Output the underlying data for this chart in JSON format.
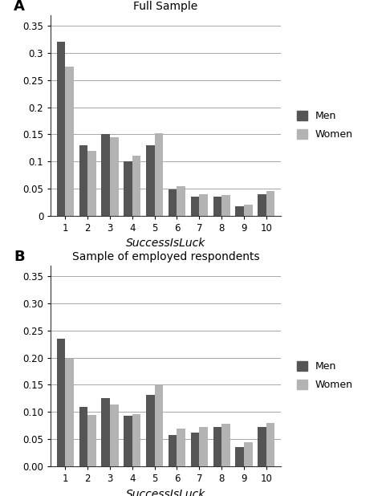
{
  "panel_A": {
    "title": "Full Sample",
    "label": "A",
    "men": [
      0.32,
      0.13,
      0.15,
      0.1,
      0.13,
      0.048,
      0.035,
      0.035,
      0.017,
      0.039
    ],
    "women": [
      0.275,
      0.12,
      0.145,
      0.11,
      0.152,
      0.055,
      0.04,
      0.038,
      0.02,
      0.046
    ],
    "ylim": [
      0,
      0.37
    ],
    "yticks": [
      0,
      0.05,
      0.1,
      0.15,
      0.2,
      0.25,
      0.3,
      0.35
    ],
    "yticklabels": [
      "0",
      "0.05",
      "0.1",
      "0.15",
      "0.2",
      "0.25",
      "0.3",
      "0.35"
    ],
    "xlabel": "SuccessIsLuck"
  },
  "panel_B": {
    "title": "Sample of employed respondents",
    "label": "B",
    "men": [
      0.235,
      0.11,
      0.125,
      0.093,
      0.132,
      0.058,
      0.062,
      0.072,
      0.036,
      0.073
    ],
    "women": [
      0.198,
      0.095,
      0.113,
      0.096,
      0.149,
      0.07,
      0.073,
      0.078,
      0.044,
      0.08
    ],
    "ylim": [
      0,
      0.37
    ],
    "yticks": [
      0.0,
      0.05,
      0.1,
      0.15,
      0.2,
      0.25,
      0.3,
      0.35
    ],
    "yticklabels": [
      "0.00",
      "0.05",
      "0.10",
      "0.15",
      "0.20",
      "0.25",
      "0.30",
      "0.35"
    ],
    "xlabel": "SuccessIsLuck"
  },
  "men_color": "#555555",
  "women_color": "#b3b3b3",
  "bar_width": 0.38,
  "categories": [
    1,
    2,
    3,
    4,
    5,
    6,
    7,
    8,
    9,
    10
  ],
  "background_color": "#ffffff"
}
